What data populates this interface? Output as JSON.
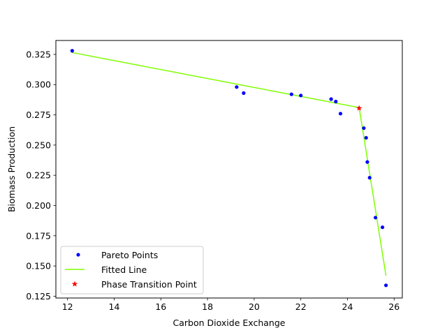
{
  "chart_data": {
    "type": "scatter",
    "title": "",
    "xlabel": "Carbon Dioxide Exchange",
    "ylabel": "Biomass Production",
    "xlim": [
      11.5,
      26.35
    ],
    "ylim": [
      0.1235,
      0.3365
    ],
    "xticks": [
      12,
      14,
      16,
      18,
      20,
      22,
      24,
      26
    ],
    "yticks": [
      0.125,
      0.15,
      0.175,
      0.2,
      0.225,
      0.25,
      0.275,
      0.3,
      0.325
    ],
    "grid": false,
    "legend_position": "lower left",
    "series": [
      {
        "name": "Pareto Points",
        "kind": "points",
        "color": "#0000ff",
        "marker": "circle",
        "points": [
          [
            12.2,
            0.328
          ],
          [
            19.25,
            0.298
          ],
          [
            19.55,
            0.293
          ],
          [
            21.6,
            0.292
          ],
          [
            22.0,
            0.291
          ],
          [
            23.3,
            0.288
          ],
          [
            23.5,
            0.286
          ],
          [
            23.7,
            0.276
          ],
          [
            24.7,
            0.264
          ],
          [
            24.8,
            0.256
          ],
          [
            24.85,
            0.236
          ],
          [
            24.95,
            0.223
          ],
          [
            25.2,
            0.19
          ],
          [
            25.5,
            0.182
          ],
          [
            25.65,
            0.134
          ]
        ]
      },
      {
        "name": "Fitted Line",
        "kind": "line",
        "color": "#7fff00",
        "points": [
          [
            12.2,
            0.3265
          ],
          [
            24.5,
            0.281
          ],
          [
            25.65,
            0.142
          ]
        ]
      },
      {
        "name": "Phase Transition Point",
        "kind": "star",
        "color": "#ff0000",
        "marker": "star",
        "points": [
          [
            24.5,
            0.2805
          ]
        ]
      }
    ]
  }
}
